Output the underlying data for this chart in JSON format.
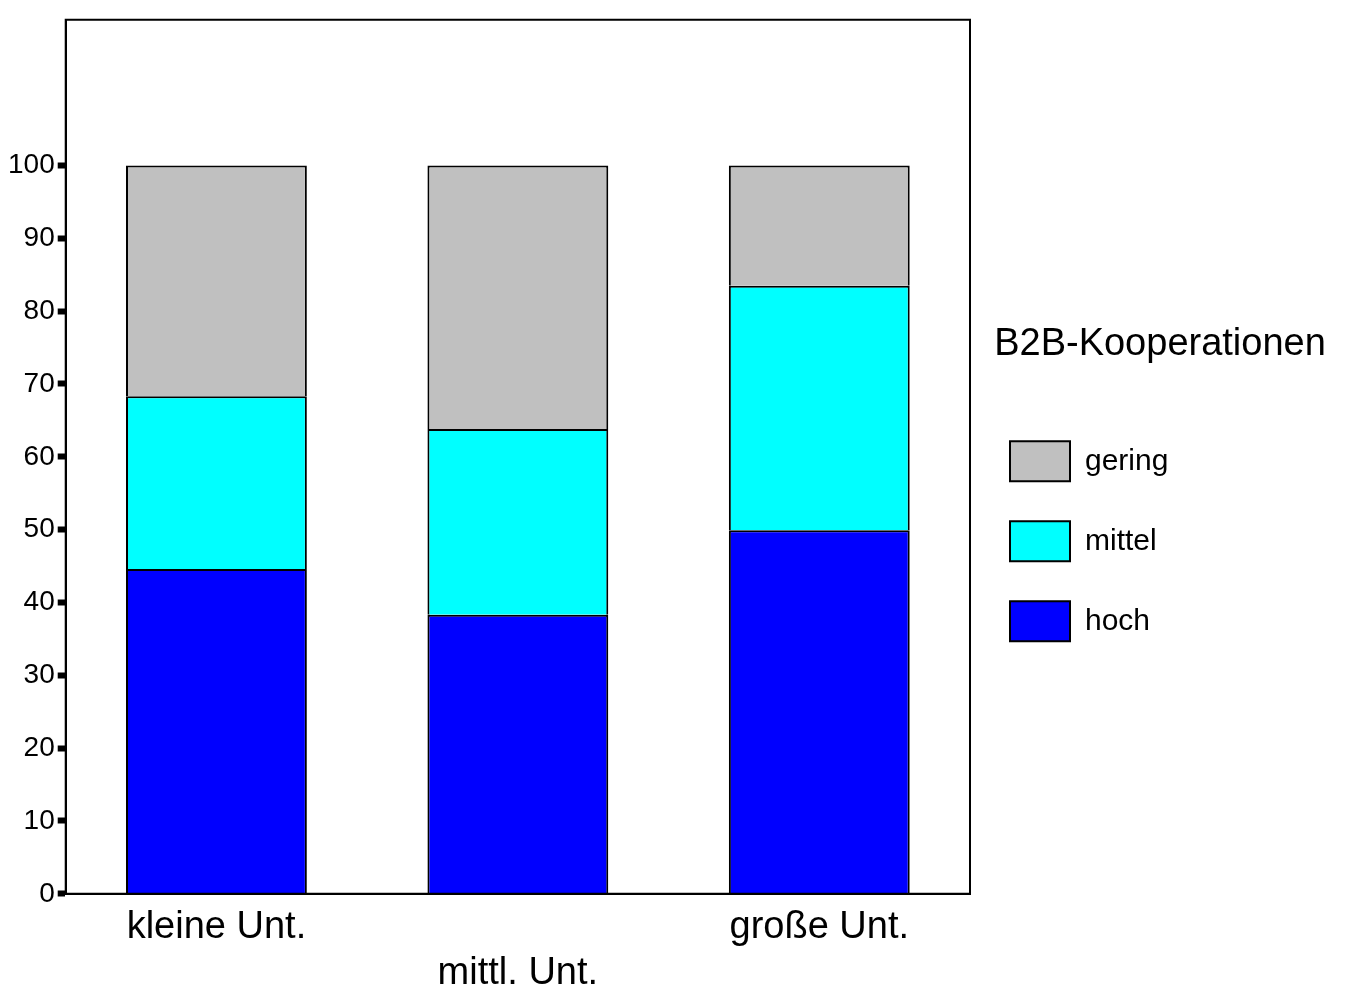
{
  "chart_data": {
    "type": "bar",
    "stacked": true,
    "categories": [
      "kleine Unt.",
      "mittl. Unt.",
      "große Unt."
    ],
    "series": [
      {
        "name": "hoch",
        "color": "#0000ff",
        "values": [
          44.6,
          38.3,
          49.9
        ]
      },
      {
        "name": "mittel",
        "color": "#00ffff",
        "values": [
          23.7,
          25.5,
          33.6
        ]
      },
      {
        "name": "gering",
        "color": "#c0c0c0",
        "values": [
          31.7,
          36.2,
          16.5
        ]
      }
    ],
    "ylim": [
      0,
      120
    ],
    "yticks": [
      0,
      10,
      20,
      30,
      40,
      50,
      60,
      70,
      80,
      90,
      100
    ],
    "grid": false,
    "legend": "right",
    "legend_title": "B2B-Kooperationen"
  }
}
